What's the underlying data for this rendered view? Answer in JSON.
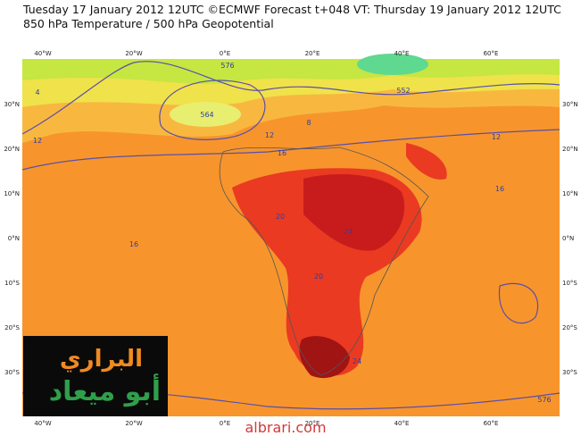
{
  "header": {
    "line1": "Tuesday 17 January 2012 12UTC ©ECMWF Forecast t+048 VT: Thursday 19 January 2012 12UTC",
    "line2": "850 hPa Temperature / 500 hPa Geopotential"
  },
  "map": {
    "lon_labels": [
      "40°W",
      "20°W",
      "0°E",
      "20°E",
      "40°E",
      "60°E"
    ],
    "lat_labels": [
      "30°N",
      "20°N",
      "10°N",
      "0°N",
      "10°S",
      "20°S",
      "30°S"
    ],
    "contour_labels": [
      "564",
      "576",
      "552",
      "12",
      "16",
      "20",
      "24",
      "8",
      "4",
      "16",
      "12",
      "20",
      "24",
      "16",
      "12",
      "576"
    ]
  },
  "logo": {
    "line1": "البراري",
    "line2": "أبو ميعاد"
  },
  "footer": "albrari.com"
}
